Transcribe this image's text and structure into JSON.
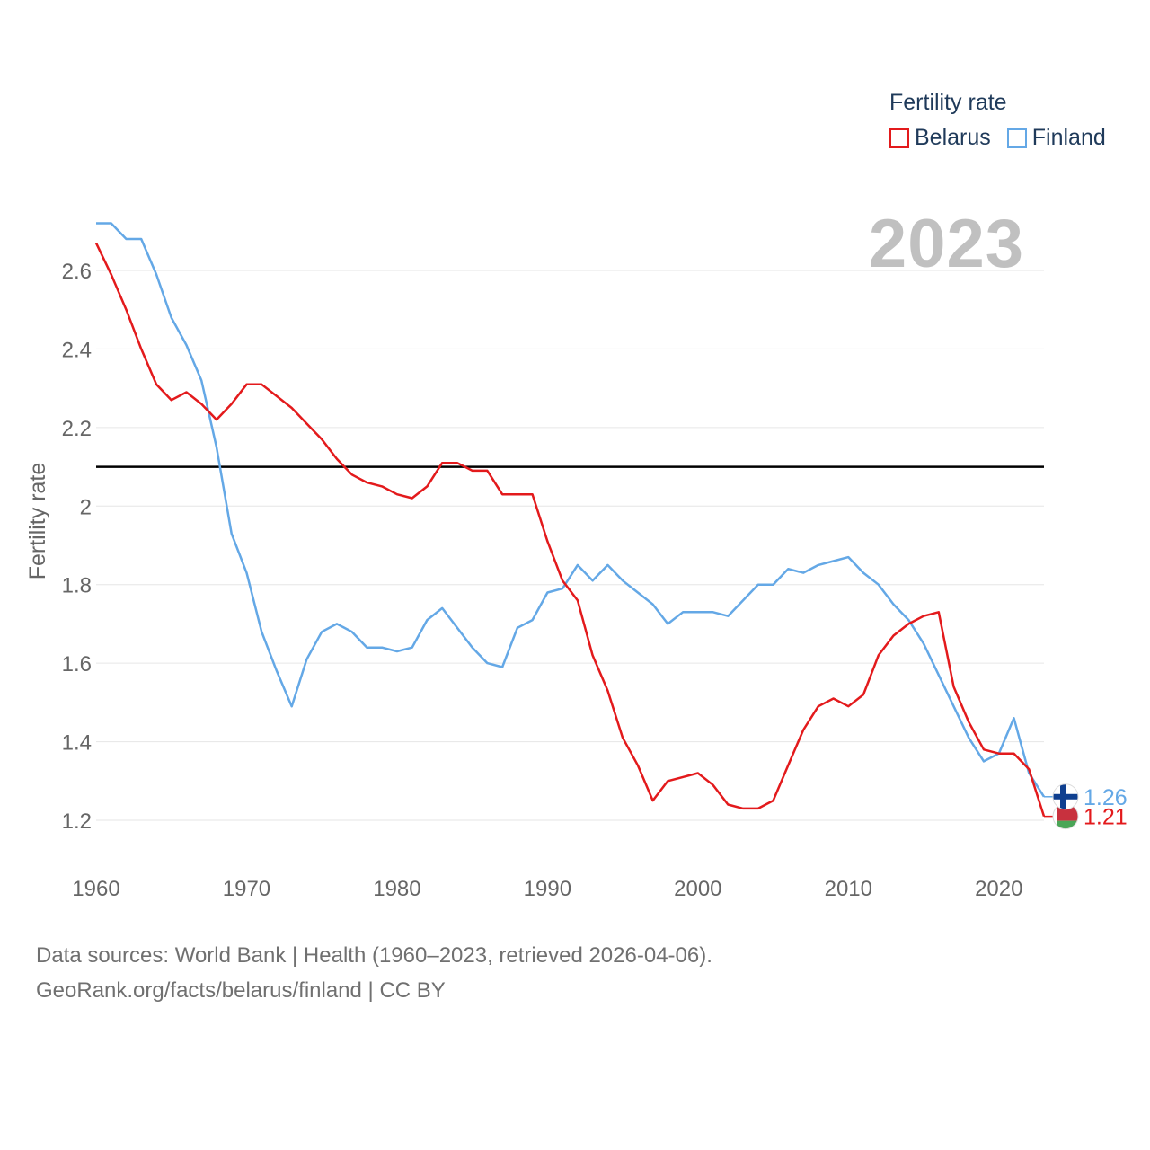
{
  "legend": {
    "title": "Fertility rate",
    "items": [
      {
        "label": "Belarus",
        "color": "#e31a1c"
      },
      {
        "label": "Finland",
        "color": "#64a8e6"
      }
    ]
  },
  "year_label": "2023",
  "source": {
    "line1": "Data sources: World Bank | Health (1960–2023, retrieved 2026-04-06).",
    "line2": "GeoRank.org/facts/belarus/finland | CC BY"
  },
  "chart_data": {
    "type": "line",
    "ylabel": "Fertility rate",
    "xlabel": "",
    "xlim": [
      1960,
      2023
    ],
    "ylim": [
      1.1,
      2.75
    ],
    "x_ticks": [
      1960,
      1970,
      1980,
      1990,
      2000,
      2010,
      2020
    ],
    "y_ticks": [
      1.2,
      1.4,
      1.6,
      1.8,
      2,
      2.2,
      2.4,
      2.6
    ],
    "y_tick_labels": [
      "1.2",
      "1.4",
      "1.6",
      "1.8",
      "2",
      "2.2",
      "2.4",
      "2.6"
    ],
    "reference_line": {
      "y": 2.1,
      "color": "#000000"
    },
    "x": [
      1960,
      1961,
      1962,
      1963,
      1964,
      1965,
      1966,
      1967,
      1968,
      1969,
      1970,
      1971,
      1972,
      1973,
      1974,
      1975,
      1976,
      1977,
      1978,
      1979,
      1980,
      1981,
      1982,
      1983,
      1984,
      1985,
      1986,
      1987,
      1988,
      1989,
      1990,
      1991,
      1992,
      1993,
      1994,
      1995,
      1996,
      1997,
      1998,
      1999,
      2000,
      2001,
      2002,
      2003,
      2004,
      2005,
      2006,
      2007,
      2008,
      2009,
      2010,
      2011,
      2012,
      2013,
      2014,
      2015,
      2016,
      2017,
      2018,
      2019,
      2020,
      2021,
      2022,
      2023
    ],
    "series": [
      {
        "name": "Belarus",
        "color": "#e31a1c",
        "end_label": "1.21",
        "values": [
          2.67,
          2.59,
          2.5,
          2.4,
          2.31,
          2.27,
          2.29,
          2.26,
          2.22,
          2.26,
          2.31,
          2.31,
          2.28,
          2.25,
          2.21,
          2.17,
          2.12,
          2.08,
          2.06,
          2.05,
          2.03,
          2.02,
          2.05,
          2.11,
          2.11,
          2.09,
          2.09,
          2.03,
          2.03,
          2.03,
          1.91,
          1.81,
          1.76,
          1.62,
          1.53,
          1.41,
          1.34,
          1.25,
          1.3,
          1.31,
          1.32,
          1.29,
          1.24,
          1.23,
          1.23,
          1.25,
          1.34,
          1.43,
          1.49,
          1.51,
          1.49,
          1.52,
          1.62,
          1.67,
          1.7,
          1.72,
          1.73,
          1.54,
          1.45,
          1.38,
          1.37,
          1.37,
          1.33,
          1.21
        ]
      },
      {
        "name": "Finland",
        "color": "#64a8e6",
        "end_label": "1.26",
        "values": [
          2.72,
          2.72,
          2.68,
          2.68,
          2.59,
          2.48,
          2.41,
          2.32,
          2.15,
          1.93,
          1.83,
          1.68,
          1.58,
          1.49,
          1.61,
          1.68,
          1.7,
          1.68,
          1.64,
          1.64,
          1.63,
          1.64,
          1.71,
          1.74,
          1.69,
          1.64,
          1.6,
          1.59,
          1.69,
          1.71,
          1.78,
          1.79,
          1.85,
          1.81,
          1.85,
          1.81,
          1.78,
          1.75,
          1.7,
          1.73,
          1.73,
          1.73,
          1.72,
          1.76,
          1.8,
          1.8,
          1.84,
          1.83,
          1.85,
          1.86,
          1.87,
          1.83,
          1.8,
          1.75,
          1.71,
          1.65,
          1.57,
          1.49,
          1.41,
          1.35,
          1.37,
          1.46,
          1.32,
          1.26
        ]
      }
    ]
  }
}
